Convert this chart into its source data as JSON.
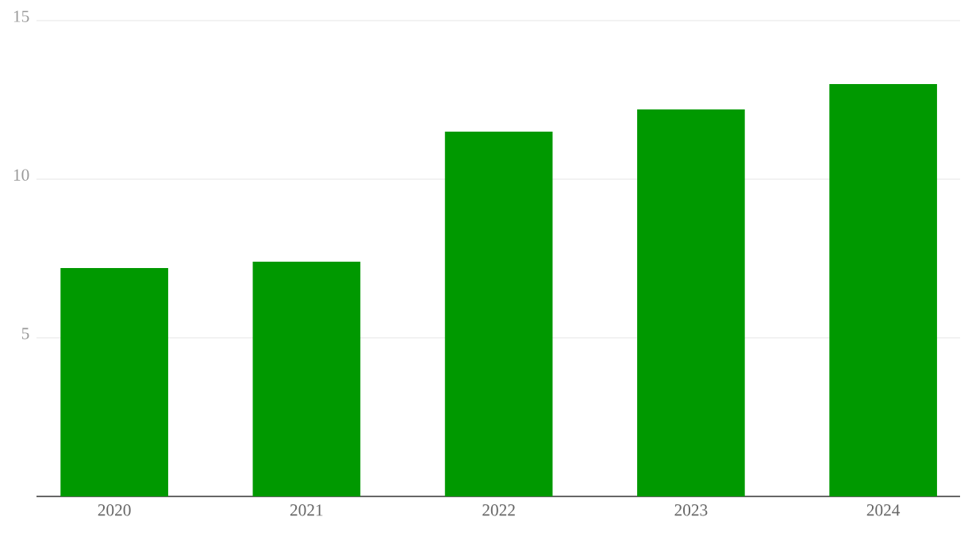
{
  "chart_data": {
    "type": "bar",
    "categories": [
      "2020",
      "2021",
      "2022",
      "2023",
      "2024"
    ],
    "values": [
      7.2,
      7.4,
      11.5,
      12.2,
      13.0
    ],
    "color": "#009900",
    "ylim": [
      0,
      15
    ],
    "yticks": [
      5,
      10,
      15
    ],
    "grid": "y"
  }
}
